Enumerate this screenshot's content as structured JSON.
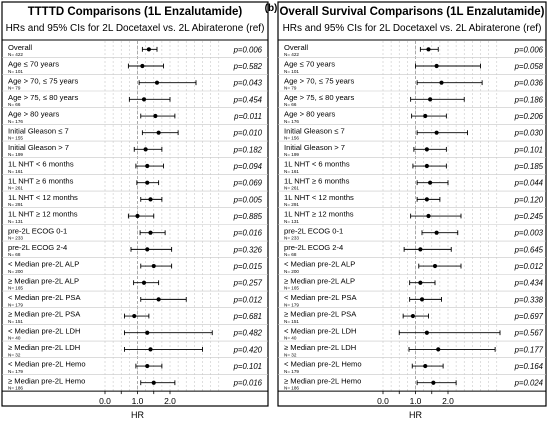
{
  "panel_b_label": "(b)",
  "chart_data": [
    {
      "type": "forest",
      "title": "TTTTD Comparisons (1L Enzalutamide)",
      "subtitle": "HRs and 95% CIs for 2L Docetaxel vs. 2L Abiraterone (ref)",
      "xlabel": "HR",
      "xticks": [
        0.0,
        0.5,
        1.0,
        1.5,
        2.0
      ],
      "xtick_labels": [
        "0.0",
        "",
        "1.0",
        "",
        "2.0"
      ],
      "reference_line": 1.0,
      "xlim": [
        -0.4,
        3.6
      ],
      "rows": [
        {
          "label": "Overall",
          "n": "N= 422",
          "hr": 1.35,
          "lo": 1.15,
          "hi": 1.6,
          "p": "p=0.006"
        },
        {
          "label": "Age ≤ 70 years",
          "n": "N= 101",
          "hr": 1.15,
          "lo": 0.72,
          "hi": 1.8,
          "p": "p=0.582"
        },
        {
          "label": "Age > 70, ≤ 75 years",
          "n": "N= 79",
          "hr": 1.6,
          "lo": 1.05,
          "hi": 2.8,
          "p": "p=0.043"
        },
        {
          "label": "Age > 75, ≤ 80 years",
          "n": "N= 66",
          "hr": 1.2,
          "lo": 0.75,
          "hi": 2.0,
          "p": "p=0.454"
        },
        {
          "label": "Age > 80 years",
          "n": "N= 176",
          "hr": 1.55,
          "lo": 1.1,
          "hi": 2.15,
          "p": "p=0.011"
        },
        {
          "label": "Initial Gleason ≤ 7",
          "n": "N= 155",
          "hr": 1.65,
          "lo": 1.15,
          "hi": 2.25,
          "p": "p=0.010"
        },
        {
          "label": "Initial Gleason > 7",
          "n": "N= 199",
          "hr": 1.25,
          "lo": 0.9,
          "hi": 1.75,
          "p": "p=0.182"
        },
        {
          "label": "1L NHT < 6 months",
          "n": "N= 161",
          "hr": 1.3,
          "lo": 0.95,
          "hi": 1.8,
          "p": "p=0.094"
        },
        {
          "label": "1L NHT ≥ 6 months",
          "n": "N= 261",
          "hr": 1.3,
          "lo": 0.98,
          "hi": 1.65,
          "p": "p=0.069"
        },
        {
          "label": "1L NHT < 12 months",
          "n": "N= 291",
          "hr": 1.4,
          "lo": 1.1,
          "hi": 1.75,
          "p": "p=0.005"
        },
        {
          "label": "1L NHT ≥ 12 months",
          "n": "N= 131",
          "hr": 1.0,
          "lo": 0.72,
          "hi": 1.5,
          "p": "p=0.885"
        },
        {
          "label": "pre-2L ECOG 0-1",
          "n": "N= 233",
          "hr": 1.4,
          "lo": 1.08,
          "hi": 1.85,
          "p": "p=0.016"
        },
        {
          "label": "pre-2L ECOG 2-4",
          "n": "N= 68",
          "hr": 1.3,
          "lo": 0.8,
          "hi": 2.05,
          "p": "p=0.326"
        },
        {
          "label": "< Median pre-2L ALP",
          "n": "N= 200",
          "hr": 1.5,
          "lo": 1.1,
          "hi": 2.05,
          "p": "p=0.015"
        },
        {
          "label": "≥ Median pre-2L ALP",
          "n": "N= 165",
          "hr": 1.2,
          "lo": 0.88,
          "hi": 1.65,
          "p": "p=0.257"
        },
        {
          "label": "< Median pre-2L PSA",
          "n": "N= 179",
          "hr": 1.65,
          "lo": 1.1,
          "hi": 2.5,
          "p": "p=0.012"
        },
        {
          "label": "≥ Median pre-2L PSA",
          "n": "N= 151",
          "hr": 0.9,
          "lo": 0.6,
          "hi": 1.35,
          "p": "p=0.681"
        },
        {
          "label": "< Median pre-2L LDH",
          "n": "N= 40",
          "hr": 1.3,
          "lo": 0.6,
          "hi": 3.3,
          "p": "p=0.482"
        },
        {
          "label": "≥ Median pre-2L LDH",
          "n": "N= 32",
          "hr": 1.4,
          "lo": 0.6,
          "hi": 3.0,
          "p": "p=0.420"
        },
        {
          "label": "< Median pre-2L Hemo",
          "n": "N= 179",
          "hr": 1.3,
          "lo": 0.95,
          "hi": 1.75,
          "p": "p=0.101"
        },
        {
          "label": "≥ Median pre-2L Hemo",
          "n": "N= 186",
          "hr": 1.5,
          "lo": 1.1,
          "hi": 2.15,
          "p": "p=0.016"
        }
      ]
    },
    {
      "type": "forest",
      "title": "Overall Survival Comparisons (1L Enzalutamide)",
      "subtitle": "HRs and 95% CIs for 2L Docetaxel vs. 2L Abiraterone (ref)",
      "xlabel": "HR",
      "xticks": [
        0.0,
        0.5,
        1.0,
        1.5,
        2.0
      ],
      "xtick_labels": [
        "0.0",
        "",
        "1.0",
        "",
        "2.0"
      ],
      "reference_line": 1.0,
      "xlim": [
        -0.4,
        3.6
      ],
      "rows": [
        {
          "label": "Overall",
          "n": "N= 422",
          "hr": 1.4,
          "lo": 1.15,
          "hi": 1.7,
          "p": "p=0.006"
        },
        {
          "label": "Age ≤ 70 years",
          "n": "N= 101",
          "hr": 1.65,
          "lo": 1.0,
          "hi": 3.0,
          "p": "p=0.058"
        },
        {
          "label": "Age > 70, ≤ 75 years",
          "n": "N= 79",
          "hr": 1.8,
          "lo": 1.05,
          "hi": 3.05,
          "p": "p=0.036"
        },
        {
          "label": "Age > 75, ≤ 80 years",
          "n": "N= 66",
          "hr": 1.45,
          "lo": 0.85,
          "hi": 2.5,
          "p": "p=0.186"
        },
        {
          "label": "Age > 80 years",
          "n": "N= 176",
          "hr": 1.3,
          "lo": 0.88,
          "hi": 1.95,
          "p": "p=0.206"
        },
        {
          "label": "Initial Gleason ≤ 7",
          "n": "N= 156",
          "hr": 1.65,
          "lo": 1.05,
          "hi": 2.6,
          "p": "p=0.030"
        },
        {
          "label": "Initial Gleason > 7",
          "n": "N= 199",
          "hr": 1.35,
          "lo": 0.95,
          "hi": 1.95,
          "p": "p=0.101"
        },
        {
          "label": "1L NHT < 6 months",
          "n": "N= 161",
          "hr": 1.35,
          "lo": 0.92,
          "hi": 1.95,
          "p": "p=0.185"
        },
        {
          "label": "1L NHT ≥ 6 months",
          "n": "N= 261",
          "hr": 1.45,
          "lo": 1.05,
          "hi": 2.0,
          "p": "p=0.044"
        },
        {
          "label": "1L NHT < 12 months",
          "n": "N= 291",
          "hr": 1.35,
          "lo": 1.05,
          "hi": 1.75,
          "p": "p=0.120"
        },
        {
          "label": "1L NHT ≥ 12 months",
          "n": "N= 131",
          "hr": 1.4,
          "lo": 0.85,
          "hi": 2.4,
          "p": "p=0.245"
        },
        {
          "label": "pre-2L ECOG 0-1",
          "n": "N= 233",
          "hr": 1.65,
          "lo": 1.2,
          "hi": 2.3,
          "p": "p=0.003"
        },
        {
          "label": "pre-2L ECOG 2-4",
          "n": "N= 68",
          "hr": 1.15,
          "lo": 0.65,
          "hi": 2.1,
          "p": "p=0.645"
        },
        {
          "label": "< Median pre-2L ALP",
          "n": "N= 200",
          "hr": 1.6,
          "lo": 1.1,
          "hi": 2.4,
          "p": "p=0.012"
        },
        {
          "label": "≥ Median pre-2L ALP",
          "n": "N= 165",
          "hr": 1.15,
          "lo": 0.82,
          "hi": 1.6,
          "p": "p=0.434"
        },
        {
          "label": "< Median pre-2L PSA",
          "n": "N= 179",
          "hr": 1.2,
          "lo": 0.82,
          "hi": 1.8,
          "p": "p=0.338"
        },
        {
          "label": "≥ Median pre-2L PSA",
          "n": "N= 151",
          "hr": 0.92,
          "lo": 0.62,
          "hi": 1.4,
          "p": "p=0.697"
        },
        {
          "label": "< Median pre-2L LDH",
          "n": "N= 40",
          "hr": 1.35,
          "lo": 0.5,
          "hi": 3.6,
          "p": "p=0.567"
        },
        {
          "label": "≥ Median pre-2L LDH",
          "n": "N= 32",
          "hr": 1.7,
          "lo": 0.8,
          "hi": 3.45,
          "p": "p=0.177"
        },
        {
          "label": "< Median pre-2L Hemo",
          "n": "N= 179",
          "hr": 1.3,
          "lo": 0.9,
          "hi": 1.85,
          "p": "p=0.164"
        },
        {
          "label": "≥ Median pre-2L Hemo",
          "n": "N= 186",
          "hr": 1.55,
          "lo": 1.05,
          "hi": 2.25,
          "p": "p=0.024"
        }
      ]
    }
  ]
}
